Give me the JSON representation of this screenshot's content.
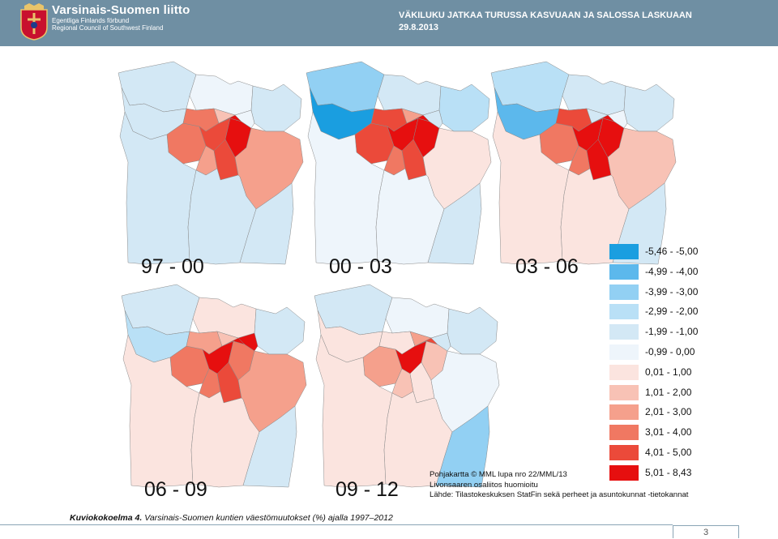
{
  "header": {
    "org_name": "Varsinais-Suomen liitto",
    "org_sub1": "Egentliga Finlands förbund",
    "org_sub2": "Regional Council of Southwest Finland",
    "title": "VÄKILUKU JATKAA TURUSSA KASVUAAN JA SALOSSA LASKUAAN",
    "date": "29.8.2013"
  },
  "maps": [
    {
      "period": "97 - 00"
    },
    {
      "period": "00 - 03"
    },
    {
      "period": "03 - 06"
    },
    {
      "period": "06 - 09"
    },
    {
      "period": "09 - 12"
    }
  ],
  "legend": [
    {
      "label": "-5,46 - -5,00",
      "color": "#1a9ee0"
    },
    {
      "label": "-4,99 - -4,00",
      "color": "#5cb8ec"
    },
    {
      "label": "-3,99 - -3,00",
      "color": "#92d0f3"
    },
    {
      "label": "-2,99 - -2,00",
      "color": "#b9e0f6"
    },
    {
      "label": "-1,99 - -1,00",
      "color": "#d3e8f5"
    },
    {
      "label": "-0,99 - 0,00",
      "color": "#eef5fb"
    },
    {
      "label": "0,01 - 1,00",
      "color": "#fbe4df"
    },
    {
      "label": "1,01 - 2,00",
      "color": "#f8c2b5"
    },
    {
      "label": "2,01 - 3,00",
      "color": "#f5a08c"
    },
    {
      "label": "3,01 - 4,00",
      "color": "#f07862"
    },
    {
      "label": "4,01 - 5,00",
      "color": "#eb4a3a"
    },
    {
      "label": "5,01 - 8,43",
      "color": "#e60f0f"
    }
  ],
  "credits": [
    "Pohjakartta © MML lupa nro 22/MML/13",
    "Livonsaaren osaliitos huomioitu",
    "Lähde: Tilastokeskuksen StatFin sekä perheet ja asuntokunnat -tietokannat"
  ],
  "caption": {
    "label": "Kuviokokoelma 4.",
    "text": "Varsinais-Suomen kuntien väestömuutokset (%) ajalla 1997–2012"
  },
  "page_number": "3",
  "map_fills": [
    {
      "nw": "#d3e8f5",
      "west": "#d3e8f5",
      "north": "#eef5fb",
      "ne": "#d3e8f5",
      "east": "#f5a08c",
      "se": "#d3e8f5",
      "south": "#d3e8f5",
      "sw": "#d3e8f5",
      "r1": "#f07862",
      "r2": "#f07862",
      "r3": "#eb4a3a",
      "r4": "#f5a08c",
      "r5": "#e60f0f",
      "r6": "#e60f0f",
      "r7": "#eb4a3a",
      "n1": "#f8c2b5",
      "n2": "#eef5fb",
      "sea": "#d3e8f5"
    },
    {
      "nw": "#92d0f3",
      "west": "#1a9ee0",
      "north": "#d3e8f5",
      "ne": "#b9e0f6",
      "east": "#fbe4df",
      "se": "#d3e8f5",
      "south": "#eef5fb",
      "sw": "#eef5fb",
      "r1": "#eb4a3a",
      "r2": "#eb4a3a",
      "r3": "#e60f0f",
      "r4": "#f07862",
      "r5": "#e60f0f",
      "r6": "#e60f0f",
      "r7": "#eb4a3a",
      "n1": "#f5a08c",
      "n2": "#d3e8f5",
      "sea": "#b9e0f6"
    },
    {
      "nw": "#b9e0f6",
      "west": "#5cb8ec",
      "north": "#d3e8f5",
      "ne": "#d3e8f5",
      "east": "#f8c2b5",
      "se": "#d3e8f5",
      "south": "#fbe4df",
      "sw": "#fbe4df",
      "r1": "#f07862",
      "r2": "#eb4a3a",
      "r3": "#e60f0f",
      "r4": "#f07862",
      "r5": "#e60f0f",
      "r6": "#e60f0f",
      "r7": "#e60f0f",
      "n1": "#d3e8f5",
      "n2": "#eef5fb",
      "sea": "#b9e0f6"
    },
    {
      "nw": "#d3e8f5",
      "west": "#b9e0f6",
      "north": "#fbe4df",
      "ne": "#d3e8f5",
      "east": "#f5a08c",
      "se": "#d3e8f5",
      "south": "#fbe4df",
      "sw": "#fbe4df",
      "r1": "#f07862",
      "r2": "#f5a08c",
      "r3": "#e60f0f",
      "r4": "#f07862",
      "r5": "#e60f0f",
      "r6": "#f07862",
      "r7": "#eb4a3a",
      "n1": "#f8c2b5",
      "n2": "#e60f0f",
      "sea": "#d3e8f5"
    },
    {
      "nw": "#d3e8f5",
      "west": "#fbe4df",
      "north": "#eef5fb",
      "ne": "#d3e8f5",
      "east": "#eef5fb",
      "se": "#92d0f3",
      "south": "#fbe4df",
      "sw": "#fbe4df",
      "r1": "#f5a08c",
      "r2": "#fbe4df",
      "r3": "#e60f0f",
      "r4": "#f8c2b5",
      "r5": "#eb4a3a",
      "r6": "#f8c2b5",
      "r7": "#fbe4df",
      "n1": "#f5a08c",
      "n2": "#d3e8f5",
      "sea": "#d3e8f5"
    }
  ]
}
